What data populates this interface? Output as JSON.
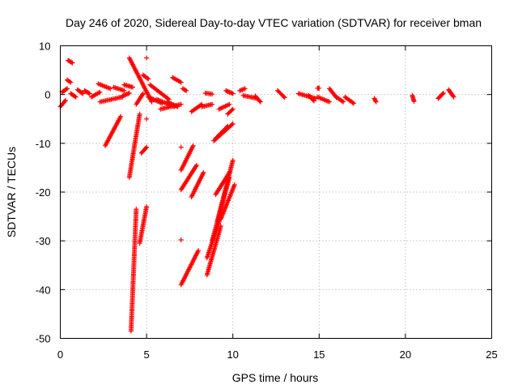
{
  "chart_data": {
    "type": "scatter",
    "title": "Day 246 of 2020, Sidereal Day-to-day VTEC variation (SDTVAR) for receiver bman",
    "xlabel": "GPS time / hours",
    "ylabel": "SDTVAR / TECUs",
    "xlim": [
      0,
      25
    ],
    "ylim": [
      -50,
      10
    ],
    "xticks": [
      0,
      5,
      10,
      15,
      20,
      25
    ],
    "yticks": [
      -50,
      -40,
      -30,
      -20,
      -10,
      0,
      10
    ],
    "grid": true,
    "marker": "+",
    "color": "#ff0000",
    "segments": [
      {
        "x": [
          0.0,
          0.3
        ],
        "y": [
          -2.5,
          -1.2
        ]
      },
      {
        "x": [
          0.1,
          0.4
        ],
        "y": [
          0.5,
          1.2
        ]
      },
      {
        "x": [
          0.4,
          0.6
        ],
        "y": [
          3.0,
          2.5
        ]
      },
      {
        "x": [
          0.45,
          0.7
        ],
        "y": [
          7.0,
          6.5
        ]
      },
      {
        "x": [
          0.6,
          0.9
        ],
        "y": [
          0.2,
          -0.5
        ]
      },
      {
        "x": [
          1.0,
          1.3
        ],
        "y": [
          1.0,
          0.2
        ]
      },
      {
        "x": [
          1.4,
          1.7
        ],
        "y": [
          0.8,
          0.2
        ]
      },
      {
        "x": [
          1.8,
          2.3
        ],
        "y": [
          -0.5,
          0.5
        ]
      },
      {
        "x": [
          2.2,
          2.9
        ],
        "y": [
          2.2,
          1.2
        ]
      },
      {
        "x": [
          2.3,
          3.6
        ],
        "y": [
          -1.5,
          -0.5
        ]
      },
      {
        "x": [
          2.6,
          3.5
        ],
        "y": [
          -10.5,
          -4.5
        ]
      },
      {
        "x": [
          3.1,
          3.7
        ],
        "y": [
          1.5,
          0.8
        ]
      },
      {
        "x": [
          3.6,
          4.0
        ],
        "y": [
          -0.3,
          0.3
        ]
      },
      {
        "x": [
          3.7,
          4.2
        ],
        "y": [
          2.0,
          1.5
        ]
      },
      {
        "x": [
          4.0,
          4.6
        ],
        "y": [
          -17.0,
          -4.0
        ]
      },
      {
        "x": [
          4.0,
          5.3
        ],
        "y": [
          7.5,
          -1.5
        ]
      },
      {
        "x": [
          4.1,
          4.4
        ],
        "y": [
          -48.5,
          -23.5
        ]
      },
      {
        "x": [
          4.4,
          4.8
        ],
        "y": [
          -2.0,
          0.2
        ]
      },
      {
        "x": [
          4.6,
          5.0
        ],
        "y": [
          -30.5,
          -23.0
        ]
      },
      {
        "x": [
          4.7,
          5.0
        ],
        "y": [
          -12.0,
          -10.8
        ]
      },
      {
        "x": [
          4.8,
          5.1
        ],
        "y": [
          4.0,
          3.2
        ]
      },
      {
        "x": [
          5.0,
          5.0
        ],
        "y": [
          7.5,
          7.5
        ]
      },
      {
        "x": [
          5.0,
          5.0
        ],
        "y": [
          -5.0,
          -5.0
        ]
      },
      {
        "x": [
          5.1,
          5.9
        ],
        "y": [
          -0.5,
          -1.8
        ]
      },
      {
        "x": [
          5.2,
          6.3
        ],
        "y": [
          2.0,
          -1.0
        ]
      },
      {
        "x": [
          5.6,
          6.6
        ],
        "y": [
          -1.0,
          -2.5
        ]
      },
      {
        "x": [
          5.8,
          7.0
        ],
        "y": [
          -3.0,
          -2.0
        ]
      },
      {
        "x": [
          6.2,
          6.8
        ],
        "y": [
          -1.5,
          -2.5
        ]
      },
      {
        "x": [
          6.5,
          7.0
        ],
        "y": [
          3.5,
          2.5
        ]
      },
      {
        "x": [
          7.0,
          7.7
        ],
        "y": [
          -15.5,
          -10.5
        ]
      },
      {
        "x": [
          7.0,
          7.0
        ],
        "y": [
          -10.8,
          -10.8
        ]
      },
      {
        "x": [
          7.0,
          7.0
        ],
        "y": [
          -29.8,
          -29.8
        ]
      },
      {
        "x": [
          7.0,
          7.9
        ],
        "y": [
          -19.5,
          -14.5
        ]
      },
      {
        "x": [
          7.0,
          8.0
        ],
        "y": [
          -39.0,
          -32.0
        ]
      },
      {
        "x": [
          7.1,
          7.3
        ],
        "y": [
          1.2,
          0.8
        ]
      },
      {
        "x": [
          7.6,
          8.3
        ],
        "y": [
          -21.0,
          -16.0
        ]
      },
      {
        "x": [
          7.6,
          8.2
        ],
        "y": [
          -3.5,
          -2.0
        ]
      },
      {
        "x": [
          8.2,
          8.8
        ],
        "y": [
          -2.5,
          -2.0
        ]
      },
      {
        "x": [
          8.4,
          8.8
        ],
        "y": [
          0.3,
          0.1
        ]
      },
      {
        "x": [
          8.5,
          9.3
        ],
        "y": [
          -37.0,
          -27.0
        ]
      },
      {
        "x": [
          8.5,
          9.3
        ],
        "y": [
          -33.5,
          -25.0
        ]
      },
      {
        "x": [
          9.0,
          9.8
        ],
        "y": [
          -20.5,
          -16.0
        ]
      },
      {
        "x": [
          9.2,
          9.8
        ],
        "y": [
          -3.0,
          -2.0
        ]
      },
      {
        "x": [
          9.3,
          10.1
        ],
        "y": [
          -25.5,
          -18.5
        ]
      },
      {
        "x": [
          9.6,
          10.0
        ],
        "y": [
          0.8,
          0.2
        ]
      },
      {
        "x": [
          9.7,
          10.0
        ],
        "y": [
          -4.0,
          -3.0
        ]
      },
      {
        "x": [
          9.1,
          10.0
        ],
        "y": [
          -26.0,
          -13.5
        ]
      },
      {
        "x": [
          8.8,
          9.8
        ],
        "y": [
          -30.0,
          -17.0
        ]
      },
      {
        "x": [
          9.0,
          9.7
        ],
        "y": [
          -9.0,
          -6.5
        ]
      },
      {
        "x": [
          8.9,
          10.0
        ],
        "y": [
          -9.5,
          -6.0
        ]
      },
      {
        "x": [
          10.4,
          10.7
        ],
        "y": [
          0.8,
          1.2
        ]
      },
      {
        "x": [
          10.6,
          11.4
        ],
        "y": [
          -0.2,
          -0.8
        ]
      },
      {
        "x": [
          11.3,
          11.6
        ],
        "y": [
          -0.3,
          -1.5
        ]
      },
      {
        "x": [
          12.6,
          13.0
        ],
        "y": [
          0.8,
          -0.6
        ]
      },
      {
        "x": [
          13.8,
          14.8
        ],
        "y": [
          0.2,
          -0.8
        ]
      },
      {
        "x": [
          14.4,
          14.7
        ],
        "y": [
          -0.2,
          -1.3
        ]
      },
      {
        "x": [
          14.9,
          15.0
        ],
        "y": [
          1.3,
          1.3
        ]
      },
      {
        "x": [
          14.9,
          15.6
        ],
        "y": [
          -0.5,
          -1.5
        ]
      },
      {
        "x": [
          15.6,
          16.0
        ],
        "y": [
          1.2,
          -0.6
        ]
      },
      {
        "x": [
          16.0,
          16.4
        ],
        "y": [
          -0.5,
          -1.5
        ]
      },
      {
        "x": [
          16.5,
          17.0
        ],
        "y": [
          -0.5,
          -1.8
        ]
      },
      {
        "x": [
          18.2,
          18.3
        ],
        "y": [
          -0.8,
          -1.5
        ]
      },
      {
        "x": [
          20.4,
          20.5
        ],
        "y": [
          -0.2,
          -1.4
        ]
      },
      {
        "x": [
          21.9,
          22.2
        ],
        "y": [
          -0.8,
          0.3
        ]
      },
      {
        "x": [
          22.5,
          22.8
        ],
        "y": [
          1.0,
          -0.5
        ]
      }
    ]
  }
}
